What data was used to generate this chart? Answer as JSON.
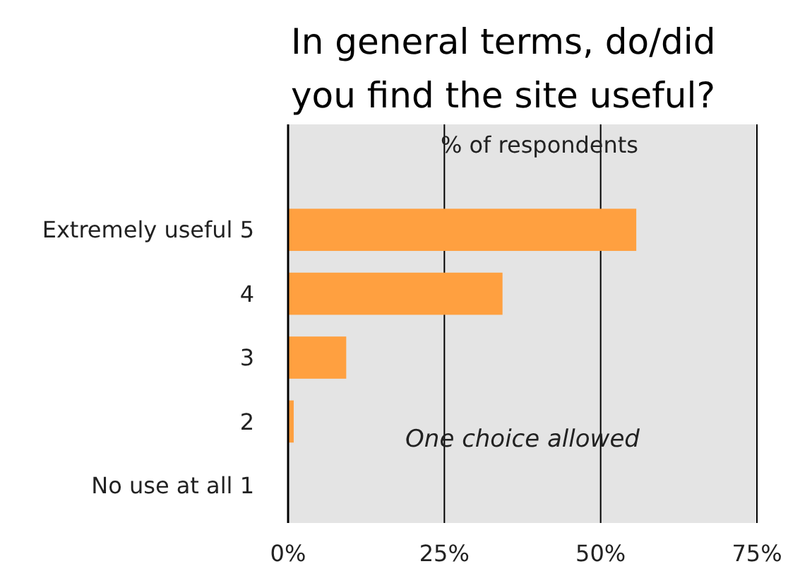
{
  "chart_data": {
    "type": "bar",
    "orientation": "horizontal",
    "title": "In general terms, do/did\nyou find the site useful?",
    "xlabel": "% of respondents",
    "categories": [
      "Extremely useful 5",
      "4",
      "3",
      "2",
      "No use at all 1"
    ],
    "values": [
      55.7,
      34.3,
      9.3,
      0.9,
      0
    ],
    "color": "#ffa040",
    "xlim": [
      0,
      75
    ],
    "xticks": [
      {
        "value": 0,
        "label": "0%"
      },
      {
        "value": 25,
        "label": "25%"
      },
      {
        "value": 50,
        "label": "50%"
      },
      {
        "value": 75,
        "label": "75%"
      }
    ],
    "grid": "x",
    "annotations": [
      "One choice allowed"
    ]
  }
}
